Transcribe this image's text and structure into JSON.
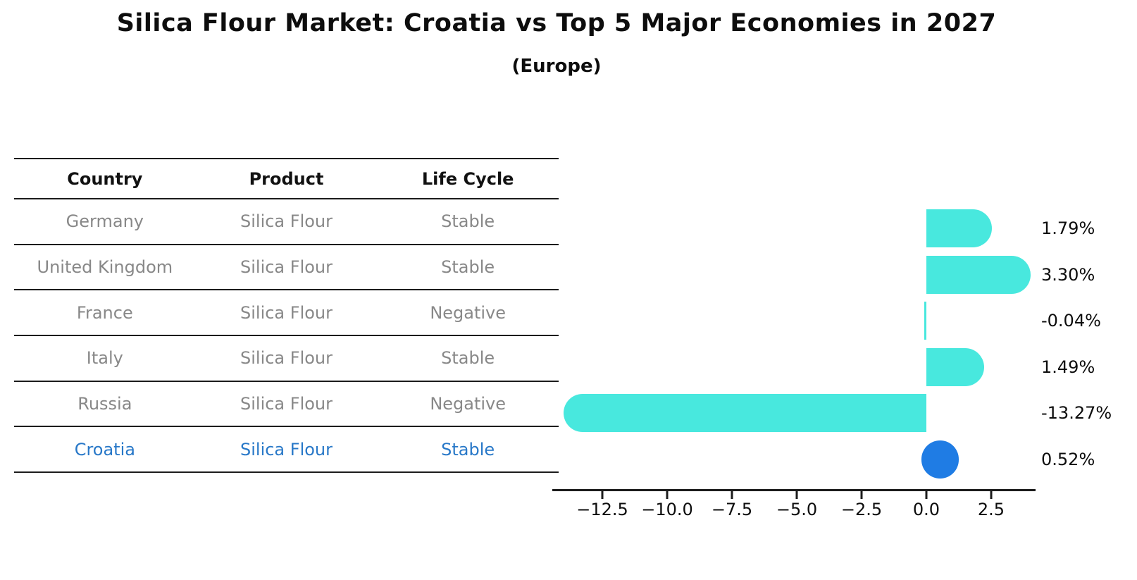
{
  "title": "Silica Flour Market: Croatia vs Top 5 Major Economies in 2027",
  "subtitle": "(Europe)",
  "table": {
    "headers": [
      "Country",
      "Product",
      "Life Cycle"
    ],
    "rows": [
      {
        "country": "Germany",
        "product": "Silica Flour",
        "life_cycle": "Stable"
      },
      {
        "country": "United Kingdom",
        "product": "Silica Flour",
        "life_cycle": "Stable"
      },
      {
        "country": "France",
        "product": "Silica Flour",
        "life_cycle": "Negative"
      },
      {
        "country": "Italy",
        "product": "Silica Flour",
        "life_cycle": "Stable"
      },
      {
        "country": "Russia",
        "product": "Silica Flour",
        "life_cycle": "Negative"
      },
      {
        "country": "Croatia",
        "product": "Silica Flour",
        "life_cycle": "Stable"
      }
    ],
    "highlight_row": "Croatia"
  },
  "chart_data": {
    "type": "bar",
    "orientation": "horizontal",
    "categories": [
      "Germany",
      "United Kingdom",
      "France",
      "Italy",
      "Russia",
      "Croatia"
    ],
    "values": [
      1.79,
      3.3,
      -0.04,
      1.49,
      -13.27,
      0.52
    ],
    "value_labels": [
      "1.79%",
      "3.30%",
      "-0.04%",
      "1.49%",
      "-13.27%",
      "0.52%"
    ],
    "highlight_index": 5,
    "x_ticks": [
      {
        "value": -12.5,
        "label": "−12.5"
      },
      {
        "value": -10.0,
        "label": "−10.0"
      },
      {
        "value": -7.5,
        "label": "−7.5"
      },
      {
        "value": -5.0,
        "label": "−5.0"
      },
      {
        "value": -2.5,
        "label": "−2.5"
      },
      {
        "value": 0.0,
        "label": "0.0"
      },
      {
        "value": 2.5,
        "label": "2.5"
      }
    ],
    "xlim": [
      -14.4,
      4.2
    ],
    "grid": false,
    "legend": false,
    "bar_style": "rounded"
  },
  "colors": {
    "bar": "#48e8de",
    "highlight": "#1f7ce4",
    "highlight_text": "#2878c8",
    "table_text": "#888888",
    "header_text": "#111111",
    "line": "#1c1c1c"
  }
}
